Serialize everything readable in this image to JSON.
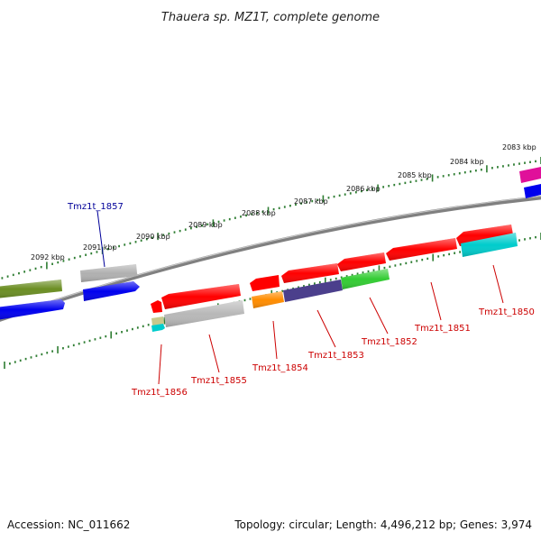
{
  "title": "Thauera sp. MZ1T, complete genome",
  "footer": {
    "accession": "Accession: NC_011662",
    "summary": "Topology: circular; Length: 4,496,212 bp; Genes: 3,974"
  },
  "ruler_labels": [
    "2083 kbp",
    "2084 kbp",
    "2085 kbp",
    "2086 kbp",
    "2087 kbp",
    "2088 kbp",
    "2089 kbp",
    "2090 kbp",
    "2091 kbp",
    "2092 kbp"
  ],
  "gene_labels": [
    {
      "text": "Tmz1t_1857",
      "color": "#000099"
    },
    {
      "text": "Tmz1t_1856",
      "color": "#cc0000"
    },
    {
      "text": "Tmz1t_1855",
      "color": "#cc0000"
    },
    {
      "text": "Tmz1t_1854",
      "color": "#cc0000"
    },
    {
      "text": "Tmz1t_1853",
      "color": "#cc0000"
    },
    {
      "text": "Tmz1t_1852",
      "color": "#cc0000"
    },
    {
      "text": "Tmz1t_1851",
      "color": "#cc0000"
    },
    {
      "text": "Tmz1t_1850",
      "color": "#cc0000"
    }
  ],
  "colors": {
    "red": "#ff0000",
    "blue": "#0000ee",
    "gray": "#b0b0b0",
    "olive": "#6b8e23",
    "cyan": "#00cccc",
    "green": "#33cc33",
    "purple": "#4b3f8c",
    "orange": "#ff8c00",
    "magenta": "#e0109a",
    "backbone": "#808080",
    "ticks": "#2e7d32"
  }
}
